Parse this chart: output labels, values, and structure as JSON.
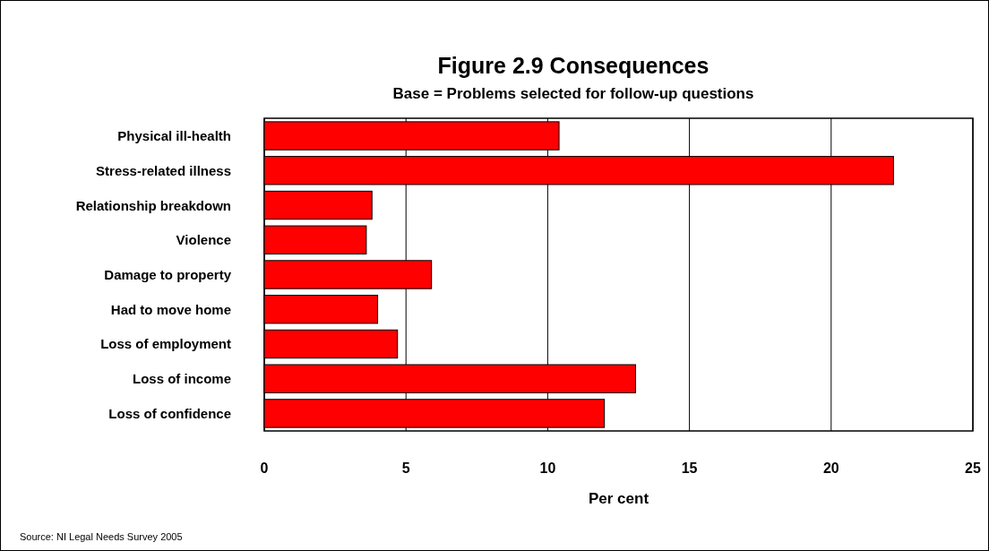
{
  "chart_data": {
    "type": "bar",
    "orientation": "horizontal",
    "title": "Figure 2.9 Consequences",
    "subtitle": "Base = Problems selected for follow-up questions",
    "xlabel": "Per cent",
    "categories": [
      "Physical ill-health",
      "Stress-related illness",
      "Relationship breakdown",
      "Violence",
      "Damage to property",
      "Had to move home",
      "Loss of employment",
      "Loss of income",
      "Loss of confidence"
    ],
    "values": [
      10.4,
      22.2,
      3.8,
      3.6,
      5.9,
      4.0,
      4.7,
      13.1,
      12.0
    ],
    "color": "#ff0000",
    "xlim": [
      0,
      25
    ],
    "xticks": [
      0,
      5,
      10,
      15,
      20,
      25
    ],
    "grid": "x",
    "annotations": [
      "Source: NI Legal Needs Survey 2005"
    ]
  }
}
